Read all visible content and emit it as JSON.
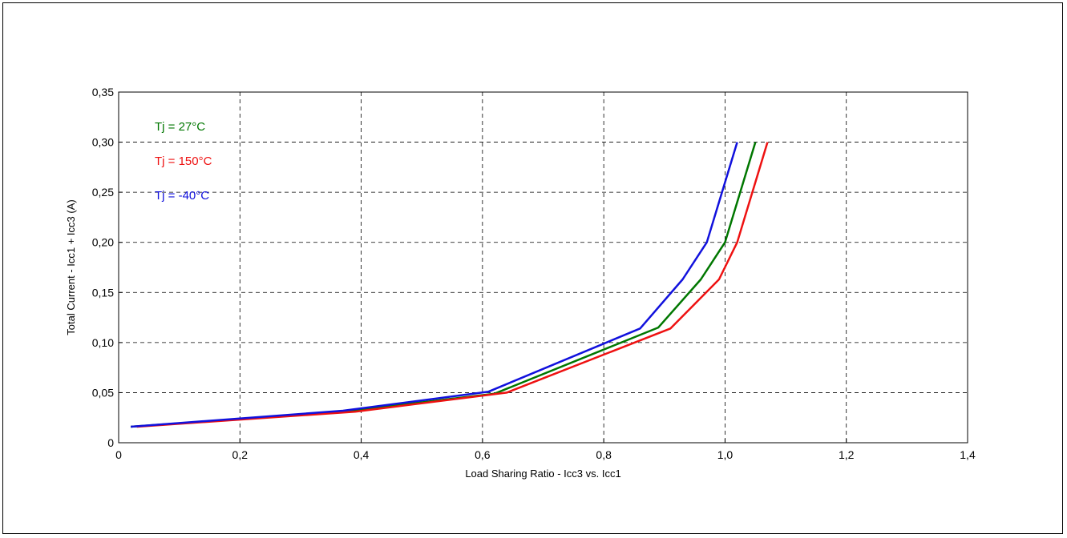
{
  "chart_data": {
    "type": "line",
    "title": "",
    "xlabel": "Load Sharing Ratio - Icc3 vs. Icc1",
    "ylabel": "Total Current - Icc1 + Icc3  (A)",
    "xlim": [
      0,
      1.4
    ],
    "ylim": [
      0,
      0.35
    ],
    "grid": true,
    "grid_style": "dashed",
    "x_ticks": [
      0,
      0.2,
      0.4,
      0.6,
      0.8,
      1.0,
      1.2,
      1.4
    ],
    "x_tick_labels": [
      "0",
      "0,2",
      "0,4",
      "0,6",
      "0,8",
      "1,0",
      "1,2",
      "1,4"
    ],
    "y_ticks": [
      0,
      0.05,
      0.1,
      0.15,
      0.2,
      0.25,
      0.3,
      0.35
    ],
    "y_tick_labels": [
      "0",
      "0,05",
      "0,10",
      "0,15",
      "0,20",
      "0,25",
      "0,30",
      "0,35"
    ],
    "legend_placement": "top-left",
    "series": [
      {
        "name": "Tj = 27°C",
        "color": "#007700",
        "points": [
          [
            0.02,
            0.016
          ],
          [
            0.37,
            0.031
          ],
          [
            0.62,
            0.049
          ],
          [
            0.89,
            0.115
          ],
          [
            0.96,
            0.163
          ],
          [
            1.0,
            0.2
          ],
          [
            1.05,
            0.3
          ]
        ]
      },
      {
        "name": "Tj = 150°C",
        "color": "#ee1111",
        "points": [
          [
            0.03,
            0.016
          ],
          [
            0.39,
            0.031
          ],
          [
            0.64,
            0.05
          ],
          [
            0.91,
            0.114
          ],
          [
            0.99,
            0.163
          ],
          [
            1.02,
            0.2
          ],
          [
            1.07,
            0.3
          ]
        ]
      },
      {
        "name": "Tj = -40°C",
        "color": "#1111dd",
        "points": [
          [
            0.02,
            0.016
          ],
          [
            0.37,
            0.032
          ],
          [
            0.61,
            0.051
          ],
          [
            0.86,
            0.114
          ],
          [
            0.93,
            0.163
          ],
          [
            0.97,
            0.2
          ],
          [
            1.02,
            0.3
          ]
        ]
      }
    ]
  }
}
